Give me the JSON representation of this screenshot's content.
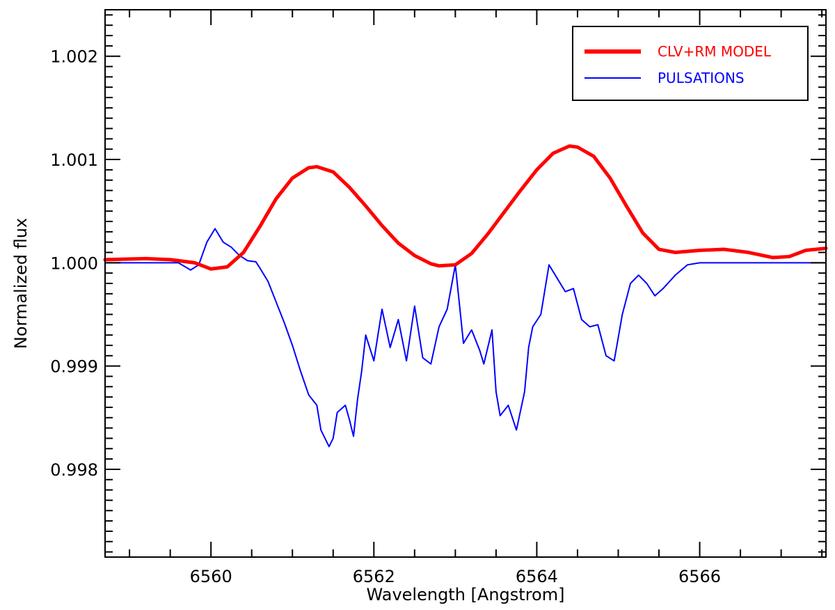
{
  "chart_data": {
    "type": "line",
    "title": "",
    "xlabel": "Wavelength [Angstrom]",
    "ylabel": "Normalized flux",
    "xlim": [
      6558.7,
      6567.55
    ],
    "ylim": [
      0.99715,
      1.00245
    ],
    "x_ticks": [
      6560,
      6562,
      6564,
      6566
    ],
    "x_tick_labels": [
      "6560",
      "6562",
      "6564",
      "6566"
    ],
    "x_minor_step": 0.5,
    "y_ticks": [
      0.998,
      0.999,
      1.0,
      1.001,
      1.002
    ],
    "y_tick_labels": [
      "0.998",
      "0.999",
      "1.000",
      "1.001",
      "1.002"
    ],
    "y_minor_step": 0.0001,
    "grid": false,
    "legend_position": "top-right",
    "series": [
      {
        "name": "CLV+RM MODEL",
        "color": "#ff0000",
        "style": "thick",
        "x": [
          6558.7,
          6559.2,
          6559.5,
          6559.8,
          6560.0,
          6560.2,
          6560.4,
          6560.6,
          6560.8,
          6561.0,
          6561.2,
          6561.3,
          6561.5,
          6561.7,
          6561.9,
          6562.1,
          6562.3,
          6562.5,
          6562.7,
          6562.8,
          6563.0,
          6563.2,
          6563.4,
          6563.6,
          6563.8,
          6564.0,
          6564.2,
          6564.4,
          6564.5,
          6564.7,
          6564.9,
          6565.1,
          6565.3,
          6565.5,
          6565.7,
          6566.0,
          6566.3,
          6566.6,
          6566.9,
          6567.1,
          6567.3,
          6567.55
        ],
        "y": [
          1.00003,
          1.00004,
          1.00003,
          1.0,
          0.99994,
          0.99996,
          1.0001,
          1.00035,
          1.00062,
          1.00082,
          1.00092,
          1.00093,
          1.00088,
          1.00073,
          1.00055,
          1.00036,
          1.00019,
          1.00007,
          0.99999,
          0.99997,
          0.99998,
          1.00009,
          1.00028,
          1.00049,
          1.0007,
          1.0009,
          1.00106,
          1.00113,
          1.00112,
          1.00103,
          1.00082,
          1.00055,
          1.00029,
          1.00013,
          1.0001,
          1.00012,
          1.00013,
          1.0001,
          1.00005,
          1.00006,
          1.00012,
          1.00014
        ]
      },
      {
        "name": "PULSATIONS",
        "color": "#0000ff",
        "style": "thin",
        "x": [
          6558.7,
          6559.6,
          6559.75,
          6559.85,
          6559.95,
          6560.05,
          6560.15,
          6560.25,
          6560.35,
          6560.45,
          6560.55,
          6560.6,
          6560.7,
          6560.8,
          6560.9,
          6561.0,
          6561.1,
          6561.2,
          6561.3,
          6561.35,
          6561.45,
          6561.5,
          6561.55,
          6561.65,
          6561.7,
          6561.75,
          6561.8,
          6561.85,
          6561.9,
          6562.0,
          6562.1,
          6562.2,
          6562.3,
          6562.4,
          6562.5,
          6562.6,
          6562.7,
          6562.8,
          6562.9,
          6563.0,
          6563.1,
          6563.2,
          6563.3,
          6563.35,
          6563.45,
          6563.5,
          6563.55,
          6563.65,
          6563.75,
          6563.85,
          6563.9,
          6563.95,
          6564.05,
          6564.15,
          6564.25,
          6564.35,
          6564.45,
          6564.55,
          6564.65,
          6564.75,
          6564.85,
          6564.95,
          6565.05,
          6565.15,
          6565.25,
          6565.35,
          6565.45,
          6565.55,
          6565.7,
          6565.85,
          6566.0,
          6566.1,
          6567.55
        ],
        "y": [
          1.0,
          1.0,
          0.99993,
          0.99998,
          1.0002,
          1.00033,
          1.0002,
          1.00015,
          1.00007,
          1.00002,
          1.00001,
          0.99995,
          0.99982,
          0.99962,
          0.99942,
          0.9992,
          0.99895,
          0.99872,
          0.99862,
          0.99838,
          0.99822,
          0.9983,
          0.99855,
          0.99862,
          0.99848,
          0.99832,
          0.99868,
          0.99895,
          0.9993,
          0.99905,
          0.99955,
          0.99918,
          0.99945,
          0.99905,
          0.99958,
          0.99908,
          0.99902,
          0.99938,
          0.99955,
          0.99998,
          0.99922,
          0.99935,
          0.99915,
          0.99902,
          0.99935,
          0.99875,
          0.99852,
          0.99862,
          0.99838,
          0.99875,
          0.99918,
          0.99938,
          0.9995,
          0.99998,
          0.99985,
          0.99972,
          0.99975,
          0.99945,
          0.99938,
          0.9994,
          0.9991,
          0.99905,
          0.9995,
          0.9998,
          0.99988,
          0.9998,
          0.99968,
          0.99975,
          0.99988,
          0.99998,
          1.0,
          1.0,
          1.0
        ]
      }
    ]
  }
}
